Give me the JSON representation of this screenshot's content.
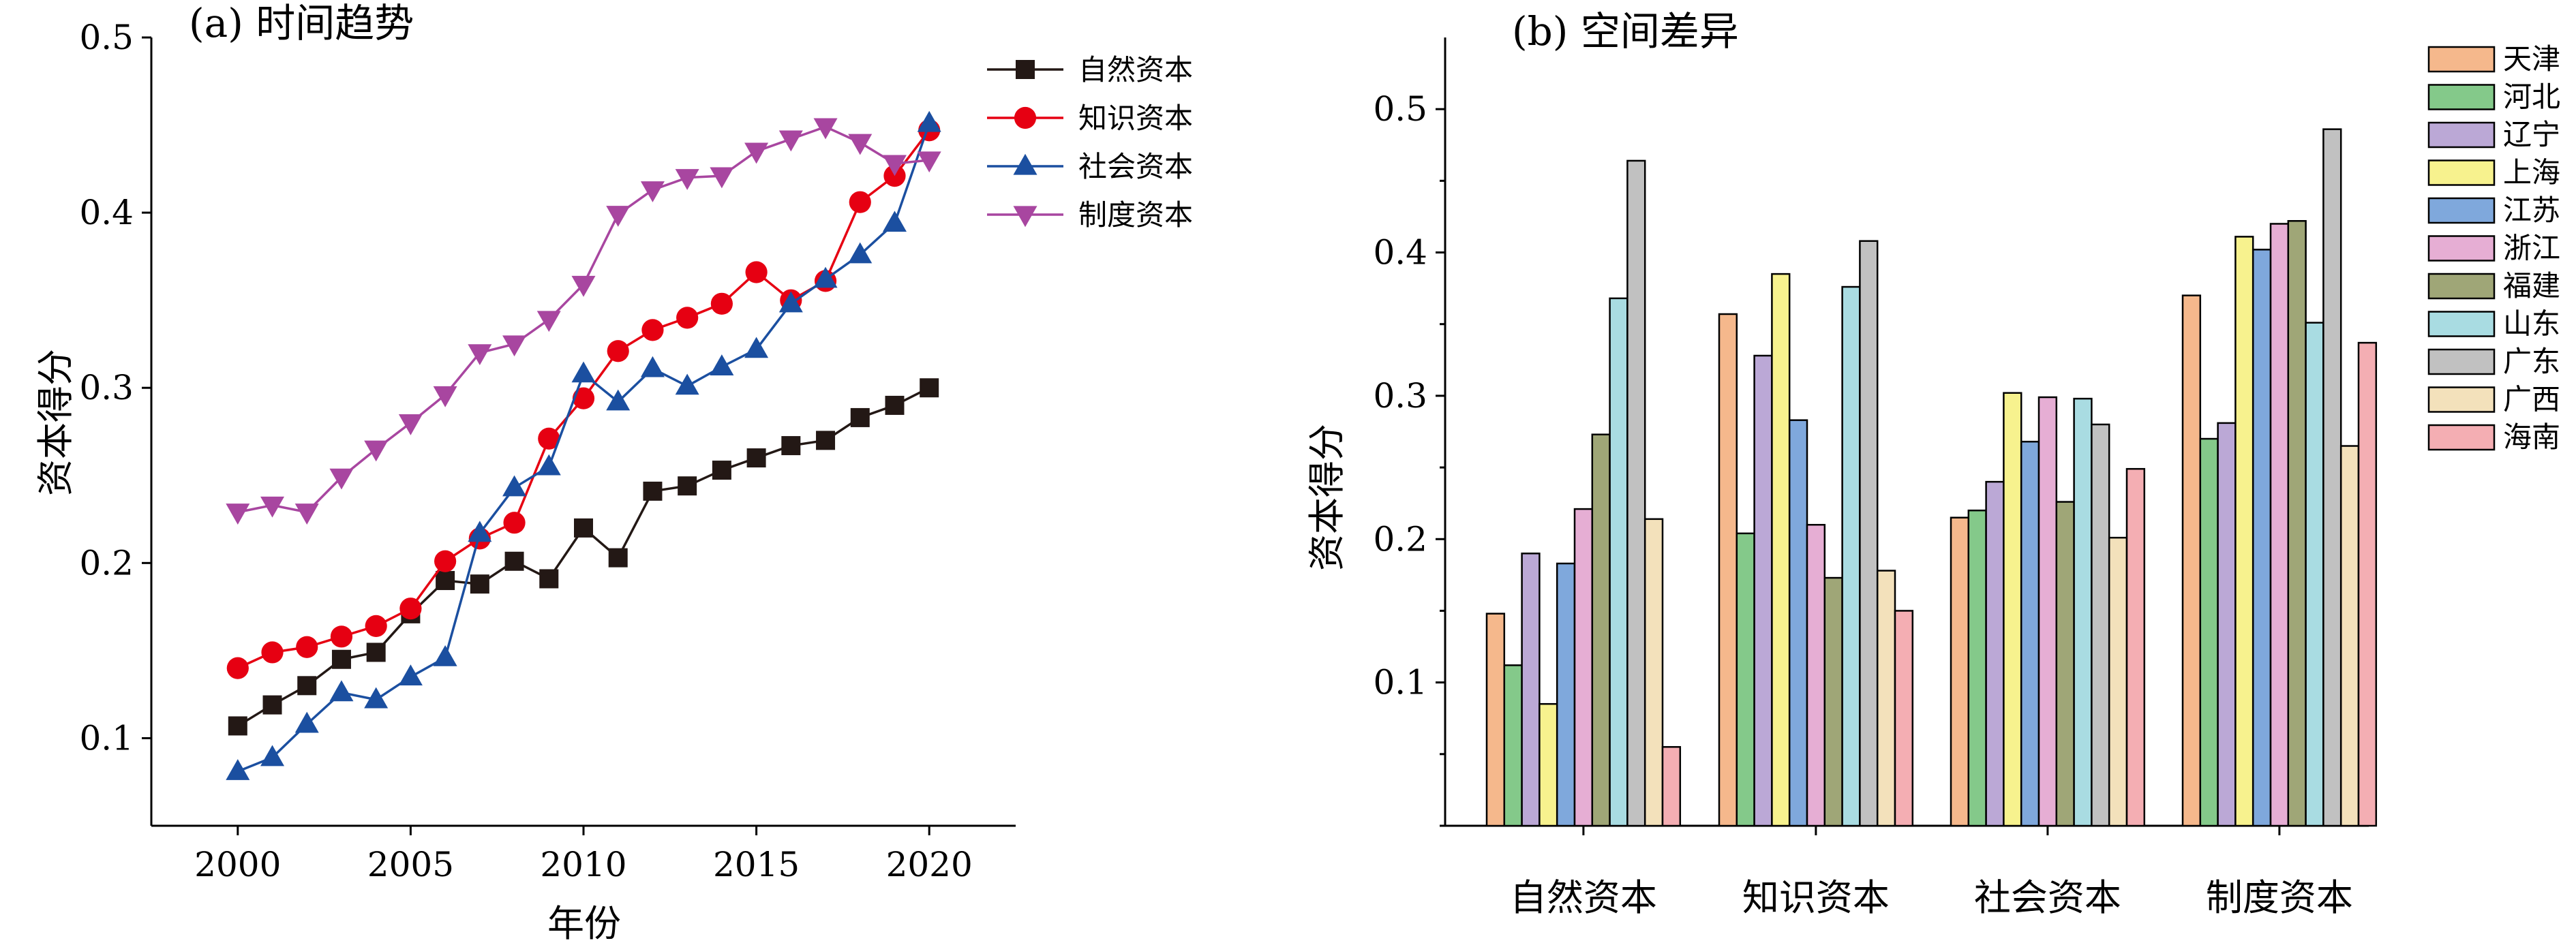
{
  "chart_data": [
    {
      "type": "line",
      "title": "(a) 时间趋势",
      "xlabel": "年份",
      "ylabel": "资本得分",
      "xlim": [
        1997.5,
        2022.5
      ],
      "ylim": [
        0.05,
        0.5
      ],
      "xticks": [
        "2000",
        "2005",
        "2010",
        "2015",
        "2020"
      ],
      "yticks": [
        "0.1",
        "0.2",
        "0.3",
        "0.4",
        "0.5"
      ],
      "legend_position": "top-right",
      "grid": false,
      "x": [
        2000,
        2001,
        2002,
        2003,
        2004,
        2005,
        2006,
        2007,
        2008,
        2009,
        2010,
        2011,
        2012,
        2013,
        2014,
        2015,
        2016,
        2017,
        2018,
        2019,
        2020
      ],
      "series": [
        {
          "name": "自然资本",
          "color": "#231815",
          "marker": "square",
          "values": [
            0.107,
            0.119,
            0.13,
            0.145,
            0.149,
            0.171,
            0.19,
            0.188,
            0.201,
            0.191,
            0.22,
            0.203,
            0.241,
            0.244,
            0.253,
            0.26,
            0.267,
            0.27,
            0.283,
            0.29,
            0.3
          ]
        },
        {
          "name": "知识资本",
          "color": "#e60012",
          "marker": "circle",
          "values": [
            0.14,
            0.149,
            0.152,
            0.158,
            0.164,
            0.174,
            0.201,
            0.214,
            0.223,
            0.271,
            0.294,
            0.321,
            0.333,
            0.34,
            0.348,
            0.366,
            0.35,
            0.361,
            0.406,
            0.421,
            0.447
          ]
        },
        {
          "name": "社会资本",
          "color": "#1b4fa0",
          "marker": "triangle-up",
          "values": [
            0.081,
            0.089,
            0.108,
            0.126,
            0.122,
            0.135,
            0.146,
            0.217,
            0.243,
            0.255,
            0.308,
            0.292,
            0.311,
            0.301,
            0.312,
            0.322,
            0.348,
            0.362,
            0.376,
            0.394,
            0.451
          ]
        },
        {
          "name": "制度资本",
          "color": "#a846a0",
          "marker": "triangle-down",
          "values": [
            0.229,
            0.233,
            0.229,
            0.249,
            0.265,
            0.28,
            0.296,
            0.32,
            0.325,
            0.339,
            0.359,
            0.399,
            0.413,
            0.42,
            0.421,
            0.435,
            0.442,
            0.449,
            0.44,
            0.428,
            0.43
          ]
        }
      ]
    },
    {
      "type": "bar",
      "title": "(b) 空间差异",
      "xlabel": "",
      "ylabel": "资本得分",
      "ylim": [
        0.0,
        0.55
      ],
      "yticks": [
        "0.1",
        "0.2",
        "0.3",
        "0.4",
        "0.5"
      ],
      "legend_position": "top-right",
      "grid": false,
      "categories": [
        "自然资本",
        "知识资本",
        "社会资本",
        "制度资本"
      ],
      "series": [
        {
          "name": "天津",
          "color": "#f5b88c",
          "values": [
            0.148,
            0.357,
            0.215,
            0.37
          ]
        },
        {
          "name": "河北",
          "color": "#84c98a",
          "values": [
            0.112,
            0.204,
            0.22,
            0.27
          ]
        },
        {
          "name": "辽宁",
          "color": "#bba8d6",
          "values": [
            0.19,
            0.328,
            0.24,
            0.281
          ]
        },
        {
          "name": "上海",
          "color": "#f7f28e",
          "values": [
            0.085,
            0.385,
            0.302,
            0.411
          ]
        },
        {
          "name": "江苏",
          "color": "#7fa8dc",
          "values": [
            0.183,
            0.283,
            0.268,
            0.402
          ]
        },
        {
          "name": "浙江",
          "color": "#e6aed4",
          "values": [
            0.221,
            0.21,
            0.299,
            0.42
          ]
        },
        {
          "name": "福建",
          "color": "#9fa677",
          "values": [
            0.273,
            0.173,
            0.226,
            0.422
          ]
        },
        {
          "name": "山东",
          "color": "#a9dce2",
          "values": [
            0.368,
            0.376,
            0.298,
            0.351
          ]
        },
        {
          "name": "广东",
          "color": "#c1c1c1",
          "values": [
            0.464,
            0.408,
            0.28,
            0.486
          ]
        },
        {
          "name": "广西",
          "color": "#f3e1bb",
          "values": [
            0.214,
            0.178,
            0.201,
            0.265
          ]
        },
        {
          "name": "海南",
          "color": "#f4aeb3",
          "values": [
            0.055,
            0.15,
            0.249,
            0.337
          ]
        }
      ]
    }
  ]
}
